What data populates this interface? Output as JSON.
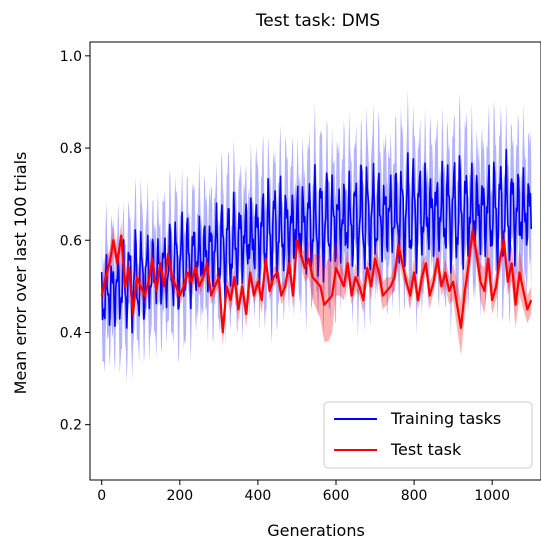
{
  "chart_data": {
    "type": "line",
    "title": "Test task: DMS",
    "xlabel": "Generations",
    "ylabel": "Mean error over last 100 trials",
    "xlim": [
      -30,
      1125
    ],
    "ylim": [
      0.08,
      1.03
    ],
    "xticks": [
      0,
      200,
      400,
      600,
      800,
      1000
    ],
    "yticks": [
      0.2,
      0.4,
      0.6,
      0.8,
      1.0
    ],
    "xtick_labels": [
      "0",
      "200",
      "400",
      "600",
      "800",
      "1000"
    ],
    "ytick_labels": [
      "0.2",
      "0.4",
      "0.6",
      "0.8",
      "1.0"
    ],
    "grid": false,
    "legend_position": "bottom-right",
    "series": [
      {
        "name": "Training tasks",
        "color": "#0000ff",
        "band_color": "#0000ff",
        "band_opacity": 0.3,
        "x_start": 0,
        "x_end": 1100,
        "anchors_x": [
          0,
          100,
          200,
          300,
          400,
          500,
          600,
          700,
          800,
          900,
          1000,
          1100
        ],
        "anchors_mean": [
          0.48,
          0.52,
          0.55,
          0.58,
          0.61,
          0.63,
          0.64,
          0.65,
          0.66,
          0.66,
          0.66,
          0.66
        ],
        "amplitude": [
          0.12,
          0.12,
          0.12,
          0.12,
          0.13,
          0.13,
          0.14,
          0.14,
          0.14,
          0.14,
          0.14,
          0.14
        ],
        "band_max": 1.0,
        "band_min": 0.1
      },
      {
        "name": "Test task",
        "color": "#ff0000",
        "band_color": "#ff0000",
        "band_opacity": 0.3,
        "x": [
          0,
          10,
          20,
          30,
          40,
          50,
          60,
          70,
          80,
          90,
          100,
          110,
          120,
          130,
          140,
          150,
          160,
          170,
          180,
          190,
          200,
          210,
          220,
          230,
          240,
          250,
          260,
          270,
          280,
          290,
          300,
          310,
          320,
          330,
          340,
          350,
          360,
          370,
          380,
          390,
          400,
          410,
          420,
          430,
          440,
          450,
          460,
          470,
          480,
          490,
          500,
          510,
          520,
          530,
          540,
          550,
          560,
          570,
          580,
          590,
          600,
          610,
          620,
          630,
          640,
          650,
          660,
          670,
          680,
          690,
          700,
          710,
          720,
          730,
          740,
          750,
          760,
          770,
          780,
          790,
          800,
          810,
          820,
          830,
          840,
          850,
          860,
          870,
          880,
          890,
          900,
          910,
          920,
          930,
          940,
          950,
          960,
          970,
          980,
          990,
          1000,
          1010,
          1020,
          1030,
          1040,
          1050,
          1060,
          1070,
          1080,
          1090,
          1100
        ],
        "values": [
          0.48,
          0.52,
          0.55,
          0.6,
          0.55,
          0.61,
          0.5,
          0.54,
          0.44,
          0.52,
          0.5,
          0.48,
          0.51,
          0.56,
          0.49,
          0.55,
          0.5,
          0.57,
          0.52,
          0.5,
          0.48,
          0.5,
          0.53,
          0.51,
          0.54,
          0.5,
          0.52,
          0.55,
          0.48,
          0.5,
          0.52,
          0.4,
          0.5,
          0.47,
          0.52,
          0.45,
          0.5,
          0.44,
          0.53,
          0.48,
          0.51,
          0.47,
          0.56,
          0.49,
          0.52,
          0.53,
          0.48,
          0.5,
          0.55,
          0.48,
          0.6,
          0.57,
          0.54,
          0.56,
          0.52,
          0.51,
          0.5,
          0.46,
          0.47,
          0.48,
          0.54,
          0.52,
          0.5,
          0.55,
          0.48,
          0.52,
          0.5,
          0.47,
          0.54,
          0.5,
          0.56,
          0.53,
          0.48,
          0.49,
          0.5,
          0.52,
          0.59,
          0.55,
          0.51,
          0.48,
          0.53,
          0.47,
          0.52,
          0.55,
          0.48,
          0.51,
          0.56,
          0.5,
          0.53,
          0.49,
          0.51,
          0.46,
          0.41,
          0.49,
          0.55,
          0.62,
          0.57,
          0.51,
          0.49,
          0.56,
          0.47,
          0.5,
          0.56,
          0.6,
          0.51,
          0.55,
          0.46,
          0.53,
          0.49,
          0.45,
          0.47
        ],
        "band_halfwidth": [
          0.02,
          0.03,
          0.03,
          0.03,
          0.02,
          0.03,
          0.03,
          0.02,
          0.03,
          0.02,
          0.02,
          0.02,
          0.03,
          0.02,
          0.02,
          0.02,
          0.02,
          0.02,
          0.02,
          0.02,
          0.02,
          0.02,
          0.02,
          0.02,
          0.02,
          0.02,
          0.02,
          0.02,
          0.02,
          0.02,
          0.02,
          0.03,
          0.02,
          0.03,
          0.02,
          0.03,
          0.02,
          0.03,
          0.02,
          0.02,
          0.02,
          0.03,
          0.02,
          0.02,
          0.02,
          0.02,
          0.02,
          0.02,
          0.03,
          0.03,
          0.02,
          0.02,
          0.03,
          0.04,
          0.05,
          0.06,
          0.07,
          0.08,
          0.09,
          0.08,
          0.06,
          0.04,
          0.03,
          0.03,
          0.02,
          0.03,
          0.02,
          0.03,
          0.02,
          0.03,
          0.03,
          0.03,
          0.03,
          0.03,
          0.02,
          0.03,
          0.03,
          0.03,
          0.02,
          0.03,
          0.03,
          0.02,
          0.03,
          0.02,
          0.03,
          0.02,
          0.03,
          0.02,
          0.03,
          0.03,
          0.04,
          0.05,
          0.06,
          0.05,
          0.04,
          0.03,
          0.03,
          0.04,
          0.05,
          0.04,
          0.03,
          0.03,
          0.03,
          0.03,
          0.03,
          0.04,
          0.05,
          0.05,
          0.04,
          0.03,
          0.03
        ]
      }
    ]
  }
}
